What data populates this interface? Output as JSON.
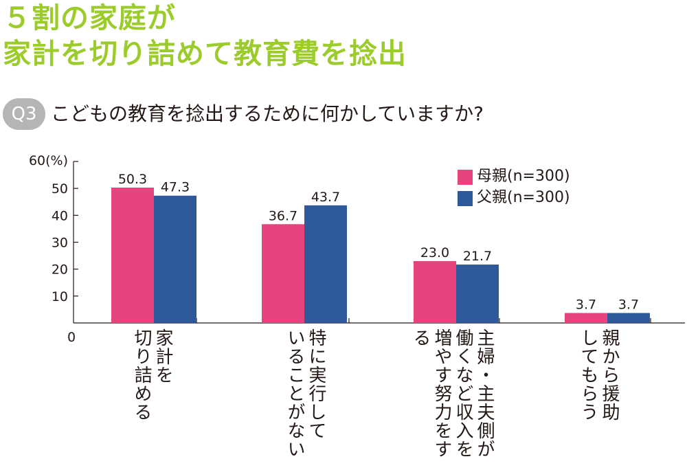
{
  "headline": {
    "line1": "５割の家庭が",
    "line2": "家計を切り詰めて教育費を捻出",
    "color": "#9ccb2c"
  },
  "question": {
    "badge": "Q3",
    "text": "こどもの教育を捻出するために何かしていますか?"
  },
  "chart_data": {
    "type": "bar",
    "categories": [
      "家計を\n切り詰める",
      "特に実行して\nいることがない",
      "主婦・主夫側が\n働くなど収入を\n増やす努力をする",
      "親から援助\nしてもらう"
    ],
    "series": [
      {
        "name": "母親(n=300)",
        "color": "#e6447f",
        "values": [
          50.3,
          36.7,
          23.0,
          3.7
        ],
        "labels": [
          "50.3",
          "36.7",
          "23.0",
          "3.7"
        ]
      },
      {
        "name": "父親(n=300)",
        "color": "#2e5a9c",
        "values": [
          47.3,
          43.7,
          21.7,
          3.7
        ],
        "labels": [
          "47.3",
          "43.7",
          "21.7",
          "3.7"
        ]
      }
    ],
    "ylim": [
      0,
      60
    ],
    "yticks": [
      {
        "value": 0,
        "label": "0"
      },
      {
        "value": 10,
        "label": "10"
      },
      {
        "value": 20,
        "label": "20"
      },
      {
        "value": 30,
        "label": "30"
      },
      {
        "value": 40,
        "label": "40"
      },
      {
        "value": 50,
        "label": "50"
      },
      {
        "value": 60,
        "label": "60(%)"
      }
    ],
    "legend_position": "top-right",
    "grid": false
  }
}
